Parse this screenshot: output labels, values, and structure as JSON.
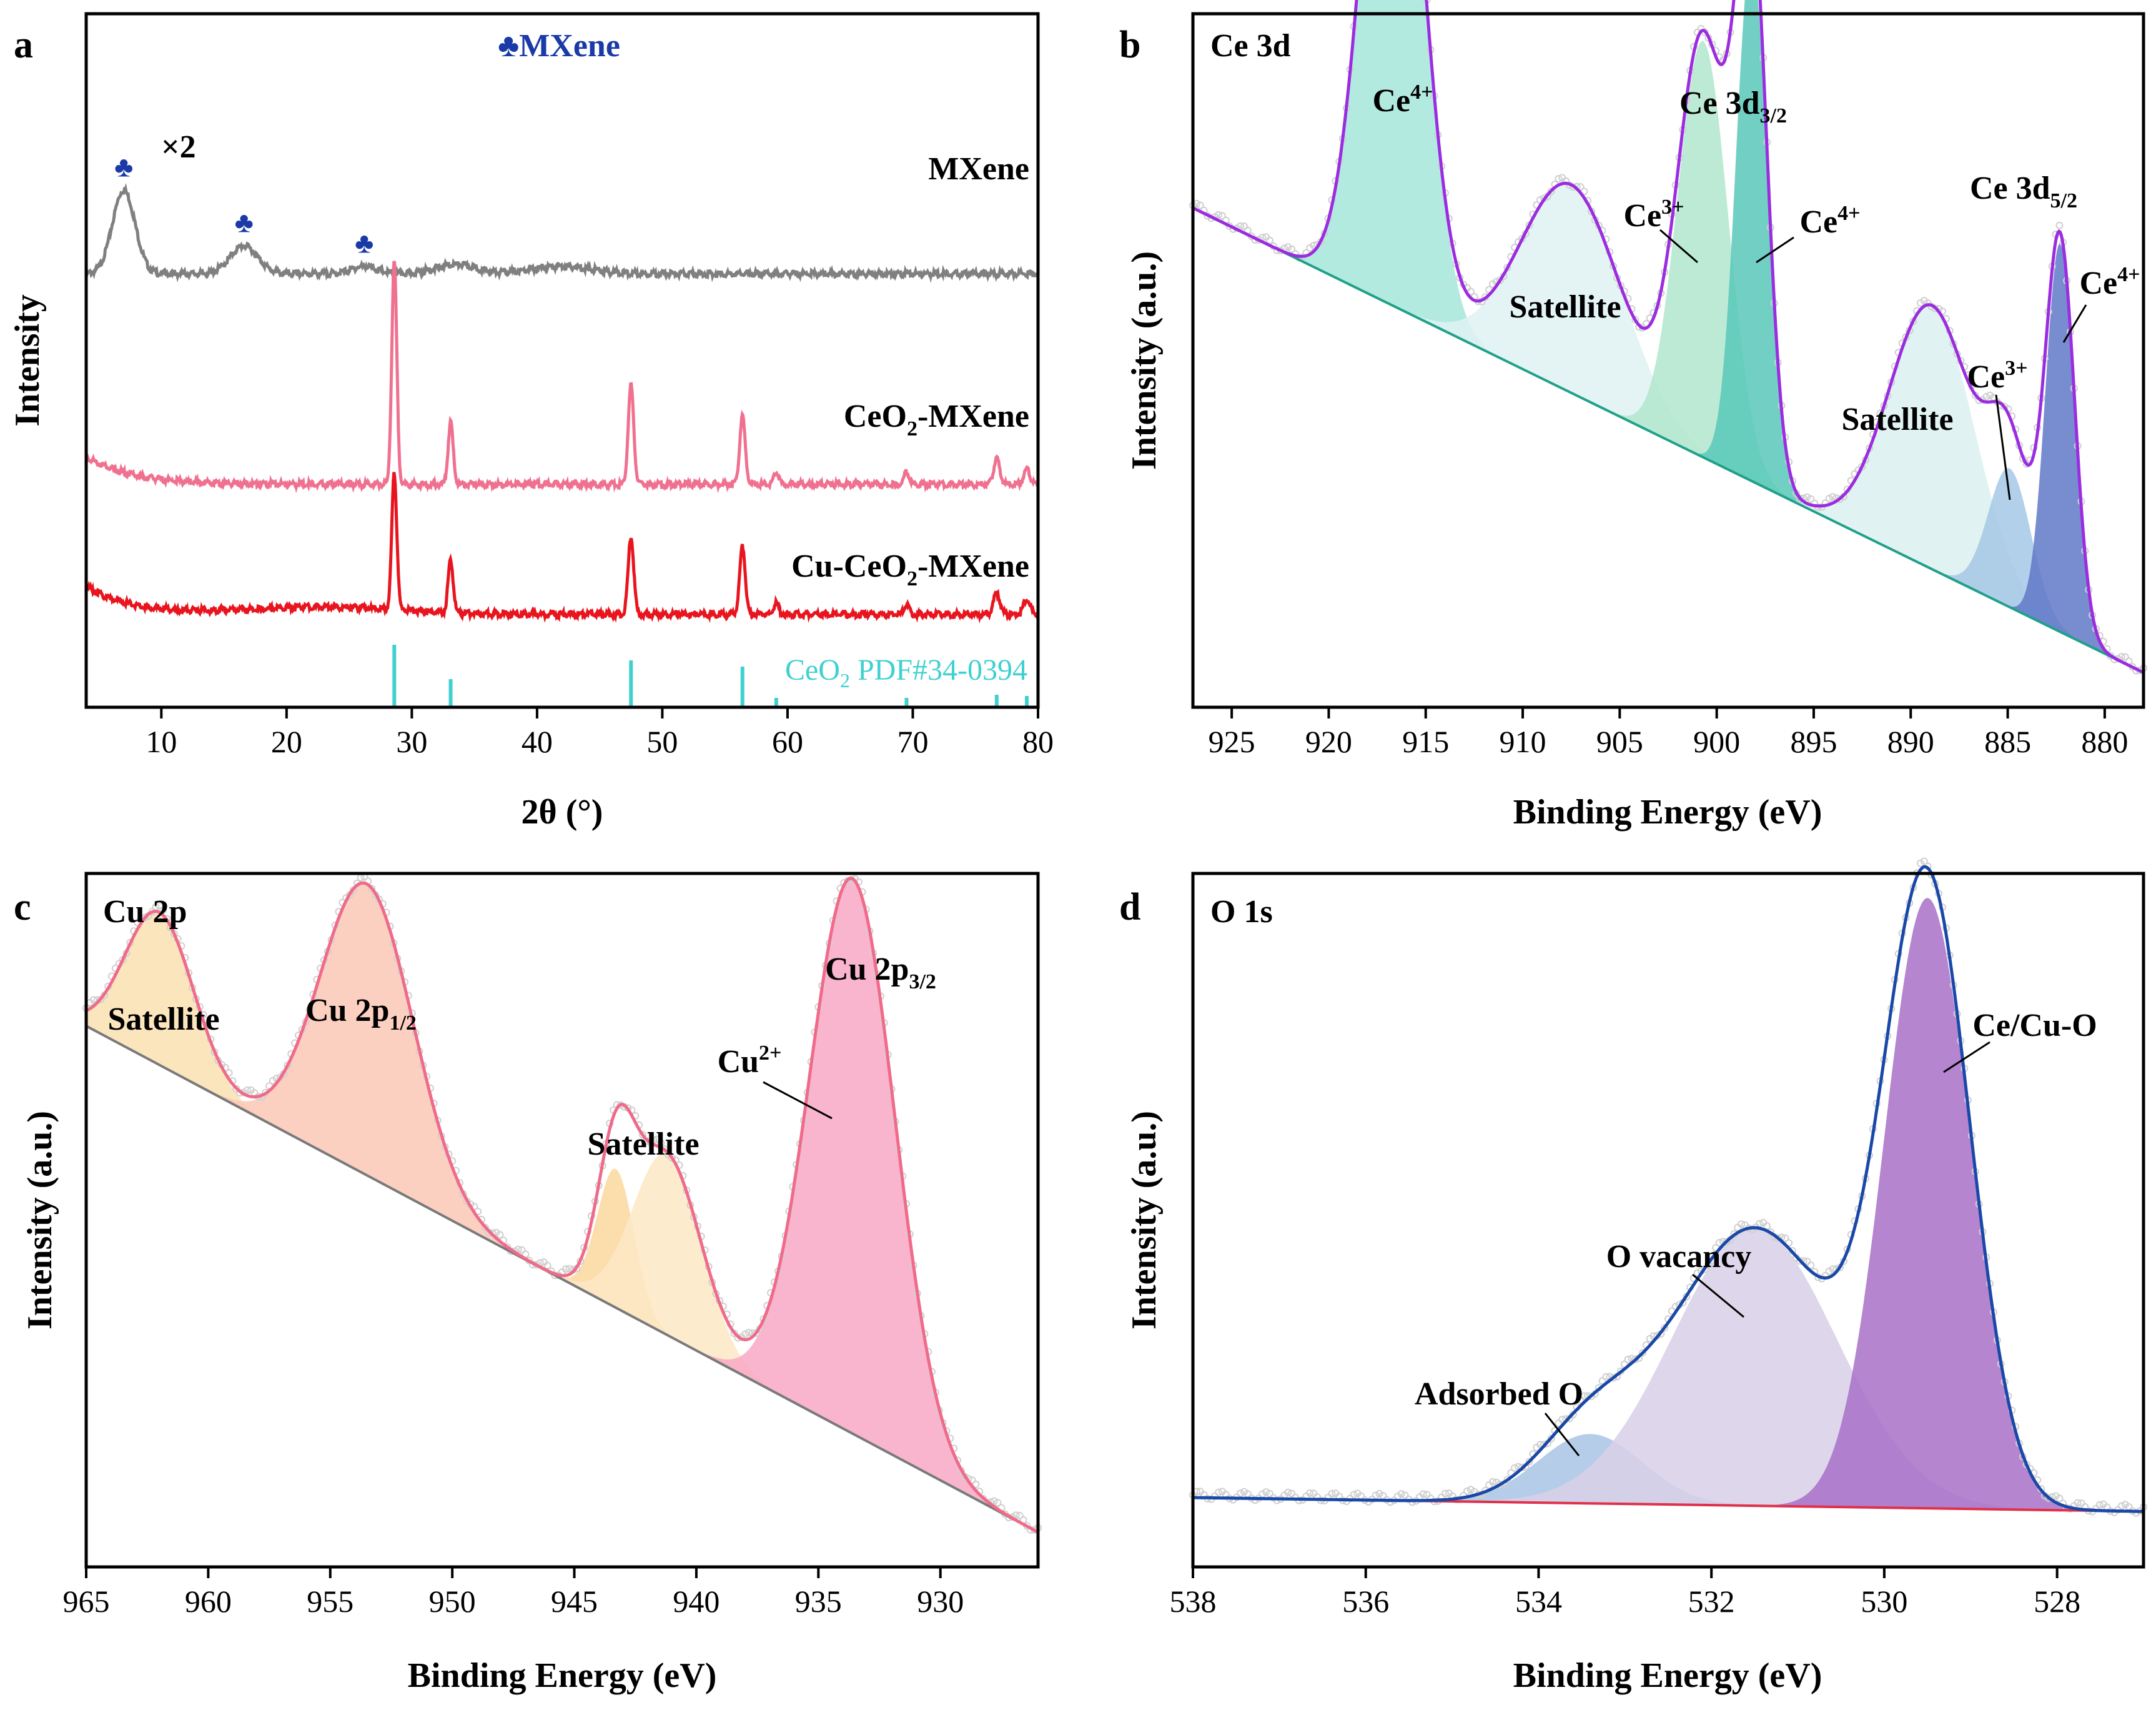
{
  "chart_data": [
    {
      "panel": "a",
      "type": "line",
      "title": "",
      "xlabel": "2θ (°)",
      "ylabel": "Intensity",
      "xlim": [
        4,
        80
      ],
      "xticks": [
        10,
        20,
        30,
        40,
        50,
        60,
        70,
        80
      ],
      "legend_note": "♣MXene",
      "marker_symbol": "♣",
      "scale_note": "×2",
      "series": [
        {
          "name": "MXene",
          "color": "#808080",
          "offset": 7,
          "peaks": [
            {
              "x": 7.0,
              "h": 1.35,
              "w": 0.9
            },
            {
              "x": 16.6,
              "h": 0.45,
              "w": 1.1
            },
            {
              "x": 26.2,
              "h": 0.12,
              "w": 1.0
            },
            {
              "x": 33.5,
              "h": 0.15,
              "w": 1.6
            },
            {
              "x": 42.0,
              "h": 0.12,
              "w": 2.4
            }
          ],
          "marker_positions": [
            7.0,
            16.6,
            26.2
          ]
        },
        {
          "name": "CeO2-MXene",
          "color": "#f07090",
          "offset": 3.6,
          "peaks": [
            {
              "x": 28.6,
              "h": 3.6,
              "w": 0.2
            },
            {
              "x": 33.1,
              "h": 1.0,
              "w": 0.2
            },
            {
              "x": 47.5,
              "h": 1.6,
              "w": 0.22
            },
            {
              "x": 56.4,
              "h": 1.1,
              "w": 0.22
            },
            {
              "x": 59.1,
              "h": 0.2,
              "w": 0.2
            },
            {
              "x": 69.5,
              "h": 0.2,
              "w": 0.2
            },
            {
              "x": 76.7,
              "h": 0.4,
              "w": 0.25
            },
            {
              "x": 79.1,
              "h": 0.25,
              "w": 0.25
            }
          ]
        },
        {
          "name": "Cu-CeO2-MXene",
          "color": "#e8141e",
          "offset": 1.5,
          "peaks": [
            {
              "x": 28.6,
              "h": 2.2,
              "w": 0.2
            },
            {
              "x": 33.1,
              "h": 0.85,
              "w": 0.2
            },
            {
              "x": 47.5,
              "h": 1.25,
              "w": 0.22
            },
            {
              "x": 56.4,
              "h": 1.1,
              "w": 0.22
            },
            {
              "x": 59.1,
              "h": 0.18,
              "w": 0.2
            },
            {
              "x": 69.5,
              "h": 0.15,
              "w": 0.2
            },
            {
              "x": 76.7,
              "h": 0.35,
              "w": 0.25
            },
            {
              "x": 79.1,
              "h": 0.25,
              "w": 0.25
            }
          ]
        }
      ],
      "labels": {
        "mxene": "MXene",
        "ceo2_mxene_main": "CeO",
        "ceo2_mxene_sub": "2",
        "ceo2_mxene_tail": "-MXene",
        "cu_ceo2_main": "Cu-CeO",
        "cu_ceo2_sub": "2",
        "cu_ceo2_tail": "-MXene"
      },
      "reference": {
        "name_main": "CeO",
        "name_sub": "2",
        "name_tail": " PDF#34-0394",
        "color": "#40d0d0",
        "positions": [
          28.6,
          33.1,
          47.5,
          56.4,
          59.1,
          69.5,
          76.7,
          79.1
        ],
        "heights": [
          1.0,
          0.45,
          0.75,
          0.65,
          0.15,
          0.15,
          0.2,
          0.18
        ]
      }
    },
    {
      "panel": "b",
      "type": "area",
      "title": "Ce 3d",
      "xlabel": "Binding Energy (eV)",
      "ylabel": "Intensity (a.u.)",
      "xlim": [
        927,
        878
      ],
      "xticks": [
        925,
        920,
        915,
        910,
        905,
        900,
        895,
        890,
        885,
        880
      ],
      "background": {
        "x": [
          927,
          878
        ],
        "y": [
          0.72,
          0.05
        ]
      },
      "components": [
        {
          "name": "Ce4+",
          "center": 916.7,
          "height": 0.9,
          "width": 1.5,
          "color": "#a4e6da"
        },
        {
          "name": "Satellite",
          "center": 907.5,
          "height": 0.3,
          "width": 2.6,
          "color": "#dff2f2"
        },
        {
          "name": "Ce3+",
          "center": 900.7,
          "height": 0.6,
          "width": 1.3,
          "color": "#b2e6cc"
        },
        {
          "name": "Ce4+",
          "center": 898.2,
          "height": 0.76,
          "width": 0.8,
          "color": "#58c8b8"
        },
        {
          "name": "Satellite",
          "center": 888.9,
          "height": 0.38,
          "width": 2.2,
          "color": "#dcf0f0"
        },
        {
          "name": "Ce3+",
          "center": 884.9,
          "height": 0.2,
          "width": 1.1,
          "color": "#a4c8e6"
        },
        {
          "name": "Ce4+",
          "center": 882.3,
          "height": 0.56,
          "width": 0.75,
          "color": "#6078c8"
        }
      ],
      "envelope_color": "#9b2ce0",
      "annotations": {
        "peak1": "Ce",
        "peak1_sup": "4+",
        "group1": "Ce 3d",
        "group1_sub": "3/2",
        "sat1": "Satellite",
        "peak2": "Ce",
        "peak2_sup": "3+",
        "peak3": "Ce",
        "peak3_sup": "4+",
        "group2": "Ce 3d",
        "group2_sub": "5/2",
        "sat2": "Satellite",
        "peak4": "Ce",
        "peak4_sup": "3+",
        "peak5": "Ce",
        "peak5_sup": "4+"
      }
    },
    {
      "panel": "c",
      "type": "area",
      "title": "Cu 2p",
      "xlabel": "Binding Energy (eV)",
      "ylabel": "Intensity (a.u.)",
      "xlim": [
        965,
        926
      ],
      "xticks": [
        965,
        960,
        955,
        950,
        945,
        940,
        935,
        930
      ],
      "background": {
        "x": [
          965,
          926
        ],
        "y": [
          0.78,
          0.05
        ]
      },
      "components": [
        {
          "name": "Satellite",
          "center": 962.0,
          "height": 0.22,
          "width": 1.4,
          "color": "#fae0b2"
        },
        {
          "name": "Cu 2p1/2",
          "center": 953.5,
          "height": 0.42,
          "width": 1.9,
          "color": "#fbc8b6"
        },
        {
          "name": "Satellite",
          "center": 943.3,
          "height": 0.2,
          "width": 0.75,
          "color": "#fcd89e"
        },
        {
          "name": "Satellite",
          "center": 941.2,
          "height": 0.26,
          "width": 1.4,
          "color": "#fde8c6"
        },
        {
          "name": "Cu2+",
          "center": 933.6,
          "height": 0.8,
          "width": 1.75,
          "color": "#f8a8c4"
        }
      ],
      "envelope_color": "#f06a8a",
      "annotations": {
        "sat_left": "Satellite",
        "p12": "Cu 2p",
        "p12_sub": "1/2",
        "sat_mid": "Satellite",
        "cu2": "Cu",
        "cu2_sup": "2+",
        "p32": "Cu 2p",
        "p32_sub": "3/2"
      }
    },
    {
      "panel": "d",
      "type": "area",
      "title": "O 1s",
      "xlabel": "Binding Energy (eV)",
      "ylabel": "Intensity (a.u.)",
      "xlim": [
        538,
        527
      ],
      "xticks": [
        538,
        536,
        534,
        532,
        530,
        528
      ],
      "background": {
        "x": [
          538,
          527
        ],
        "y": [
          0.1,
          0.08
        ]
      },
      "components": [
        {
          "name": "Adsorbed O",
          "center": 533.4,
          "height": 0.1,
          "width": 0.6,
          "color": "#a8c4e4"
        },
        {
          "name": "O vacancy",
          "center": 531.5,
          "height": 0.4,
          "width": 0.95,
          "color": "#d8d0e8"
        },
        {
          "name": "Ce/Cu-O",
          "center": 529.5,
          "height": 0.88,
          "width": 0.5,
          "color": "#a870c8"
        }
      ],
      "envelope_color": "#1848a8",
      "annotations": {
        "ads": "Adsorbed O",
        "vac": "O vacancy",
        "cecu": "Ce/Cu-O"
      }
    }
  ]
}
